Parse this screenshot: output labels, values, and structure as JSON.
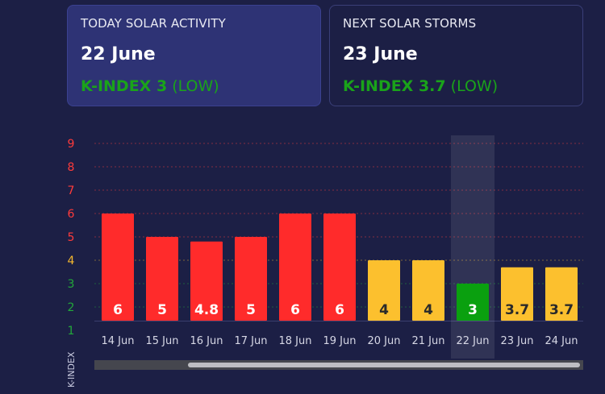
{
  "today": {
    "title": "TODAY SOLAR ACTIVITY",
    "date": "22 June",
    "kindex_label": "K-INDEX 3",
    "level": "(LOW)",
    "color": "#1aa31a"
  },
  "next": {
    "title": "NEXT SOLAR STORMS",
    "date": "23 June",
    "kindex_label": "K-INDEX 3.7",
    "level": "(LOW)",
    "color": "#1aa31a"
  },
  "chart_data": {
    "type": "bar",
    "title": "",
    "xlabel": "",
    "ylabel": "K-INDEX",
    "ylim": [
      1,
      9
    ],
    "yticks": [
      {
        "label": "9",
        "color": "#ff3b3b"
      },
      {
        "label": "8",
        "color": "#ff3b3b"
      },
      {
        "label": "7",
        "color": "#ff3b3b"
      },
      {
        "label": "6",
        "color": "#ff3b3b"
      },
      {
        "label": "5",
        "color": "#ff3b3b"
      },
      {
        "label": "4",
        "color": "#f5b82e"
      },
      {
        "label": "3",
        "color": "#22a83a"
      },
      {
        "label": "2",
        "color": "#22a83a"
      },
      {
        "label": "1",
        "color": "#22a83a"
      }
    ],
    "categories": [
      "14 Jun",
      "15 Jun",
      "16 Jun",
      "17 Jun",
      "18 Jun",
      "19 Jun",
      "20 Jun",
      "21 Jun",
      "22 Jun",
      "23 Jun",
      "24 Jun"
    ],
    "values": [
      6,
      5,
      4.8,
      5,
      6,
      6,
      4,
      4,
      3,
      3.7,
      3.7
    ],
    "labels": [
      "6",
      "5",
      "4.8",
      "5",
      "6",
      "6",
      "4",
      "4",
      "3",
      "3.7",
      "3.7"
    ],
    "bar_colors": [
      "#ff2b2b",
      "#ff2b2b",
      "#ff2b2b",
      "#ff2b2b",
      "#ff2b2b",
      "#ff2b2b",
      "#fcc02e",
      "#fcc02e",
      "#0aa00f",
      "#fcc02e",
      "#fcc02e"
    ],
    "label_colors": [
      "#ffffff",
      "#ffffff",
      "#ffffff",
      "#ffffff",
      "#ffffff",
      "#ffffff",
      "#2a2a2a",
      "#2a2a2a",
      "#ffffff",
      "#2a2a2a",
      "#2a2a2a"
    ],
    "highlight_category": "22 Jun",
    "grid": true
  }
}
